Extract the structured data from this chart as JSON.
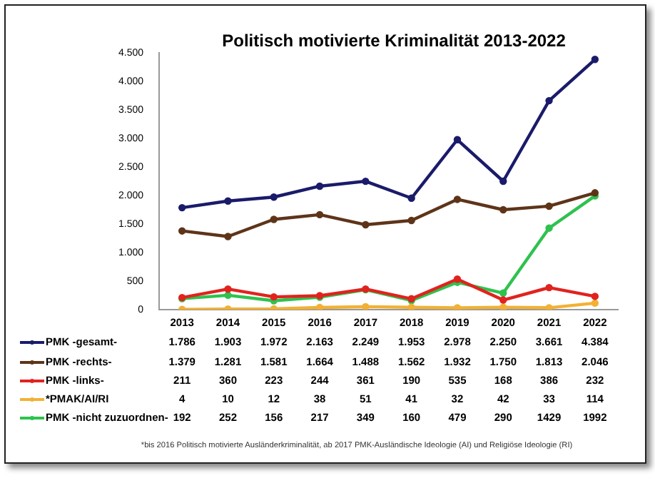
{
  "chart_data": {
    "type": "line",
    "title": "Politisch motivierte Kriminalität 2013-2022",
    "categories": [
      "2013",
      "2014",
      "2015",
      "2016",
      "2017",
      "2018",
      "2019",
      "2020",
      "2021",
      "2022"
    ],
    "series": [
      {
        "name": "PMK -gesamt-",
        "color": "#1b1b6b",
        "values": [
          1786,
          1903,
          1972,
          2163,
          2249,
          1953,
          2978,
          2250,
          3661,
          4384
        ],
        "value_labels": [
          "1.786",
          "1.903",
          "1.972",
          "2.163",
          "2.249",
          "1.953",
          "2.978",
          "2.250",
          "3.661",
          "4.384"
        ]
      },
      {
        "name": "PMK -rechts-",
        "color": "#5e3419",
        "values": [
          1379,
          1281,
          1581,
          1664,
          1488,
          1562,
          1932,
          1750,
          1813,
          2046
        ],
        "value_labels": [
          "1.379",
          "1.281",
          "1.581",
          "1.664",
          "1.488",
          "1.562",
          "1.932",
          "1.750",
          "1.813",
          "2.046"
        ]
      },
      {
        "name": "PMK -links-",
        "color": "#e0231f",
        "values": [
          211,
          360,
          223,
          244,
          361,
          190,
          535,
          168,
          386,
          232
        ],
        "value_labels": [
          "211",
          "360",
          "223",
          "244",
          "361",
          "190",
          "535",
          "168",
          "386",
          "232"
        ]
      },
      {
        "name": "*PMAK/AI/RI",
        "color": "#f2b134",
        "values": [
          4,
          10,
          12,
          38,
          51,
          41,
          32,
          42,
          33,
          114
        ],
        "value_labels": [
          "4",
          "10",
          "12",
          "38",
          "51",
          "41",
          "32",
          "42",
          "33",
          "114"
        ]
      },
      {
        "name": "PMK -nicht zuzuordnen-",
        "color": "#2ec24e",
        "values": [
          192,
          252,
          156,
          217,
          349,
          160,
          479,
          290,
          1429,
          1992
        ],
        "value_labels": [
          "192",
          "252",
          "156",
          "217",
          "349",
          "160",
          "479",
          "290",
          "1429",
          "1992"
        ]
      }
    ],
    "ylim": [
      0,
      4500
    ],
    "yticks": [
      {
        "value": 0,
        "label": "0"
      },
      {
        "value": 500,
        "label": "500"
      },
      {
        "value": 1000,
        "label": "1.000"
      },
      {
        "value": 1500,
        "label": "1.500"
      },
      {
        "value": 2000,
        "label": "2.000"
      },
      {
        "value": 2500,
        "label": "2.500"
      },
      {
        "value": 3000,
        "label": "3.000"
      },
      {
        "value": 3500,
        "label": "3.500"
      },
      {
        "value": 4000,
        "label": "4.000"
      },
      {
        "value": 4500,
        "label": "4.500"
      }
    ],
    "grid": false,
    "legend": "bottom",
    "marker": "circle",
    "line_style": "solid",
    "annotations": [
      "*bis 2016 Politisch motivierte Ausländerkriminalität, ab 2017 PMK-Ausländische Ideologie (AI) und Religiöse Ideologie (RI)"
    ]
  }
}
